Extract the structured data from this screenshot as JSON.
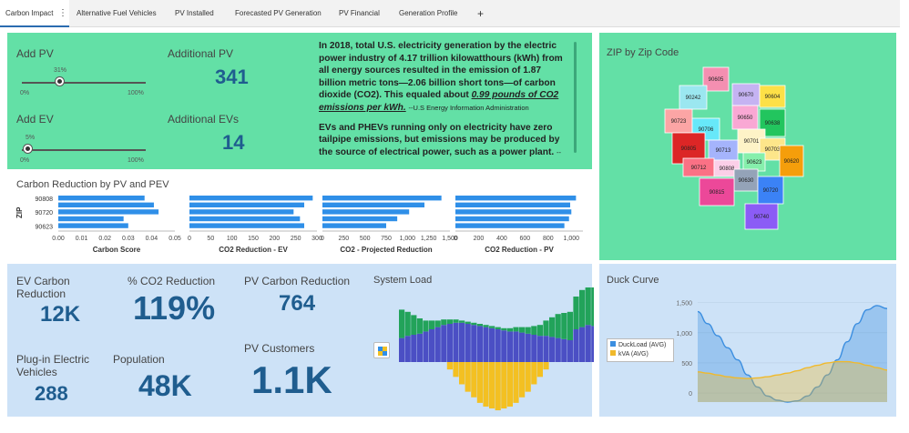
{
  "tabs": [
    {
      "label": "Carbon Impact"
    },
    {
      "label": "Alternative Fuel Vehicles"
    },
    {
      "label": "PV Installed"
    },
    {
      "label": "Forecasted PV Generation"
    },
    {
      "label": "PV Financial"
    },
    {
      "label": "Generation Profile"
    }
  ],
  "tab_more": "⋮",
  "tab_add": "+",
  "controls": {
    "add_pv": {
      "label": "Add PV",
      "value_label": "31%",
      "value": 0.31,
      "min": "0%",
      "max": "100%"
    },
    "add_ev": {
      "label": "Add EV",
      "value_label": "5%",
      "value": 0.05,
      "min": "0%",
      "max": "100%"
    },
    "additional_pv": {
      "label": "Additional PV",
      "value": "341"
    },
    "additional_evs": {
      "label": "Additional EVs",
      "value": "14"
    }
  },
  "info_text": {
    "p1": "In 2018, total U.S. electricity generation by the electric power industry of 4.17 trillion kilowatthours (kWh) from all energy sources resulted in the emission of 1.87 billion metric tons—2.06 billion short tons—of carbon dioxide (CO2). This equaled about",
    "p1_em": "0.99 pounds of CO2 emissions per kWh.",
    "p1_cite": "--U.S Energy Information Administration",
    "p2": "EVs and PHEVs running only on electricity have zero tailpipe emissions, but emissions may be produced by the source of electrical power, such as a power plant.",
    "p2_cite": "--U.S. Department of"
  },
  "map": {
    "title": "ZIP by Zip Code",
    "zips": [
      "90605",
      "90242",
      "90670",
      "90604",
      "90723",
      "90650",
      "90638",
      "90706",
      "90805",
      "90701",
      "90703",
      "90713",
      "90623",
      "90620",
      "90712",
      "90808",
      "90630",
      "90815",
      "90720",
      "90740"
    ]
  },
  "carbon_reduction": {
    "title": "Carbon Reduction by PV and PEV",
    "ylabel": "ZIP",
    "zip_labels": [
      "90808",
      "90720",
      "90623"
    ]
  },
  "kpis": {
    "ev_carbon": {
      "label_1": "EV Carbon",
      "label_2": "Reduction",
      "value": "12K"
    },
    "pct_co2": {
      "label": "% CO2 Reduction",
      "value": "119%"
    },
    "pv_carbon": {
      "label": "PV Carbon Reduction",
      "value": "764"
    },
    "plugin_ev": {
      "label_1": "Plug-in Electric",
      "label_2": "Vehicles",
      "value": "288"
    },
    "population": {
      "label": "Population",
      "value": "48K"
    },
    "pv_customers": {
      "label": "PV Customers",
      "value": "1.1K"
    }
  },
  "system_load": {
    "title": "System Load"
  },
  "colors": {
    "mint": "#63e0a6",
    "light_blue": "#cde2f7",
    "bar_blue": "#2f8fe8",
    "green": "#22a35a",
    "indigo": "#4b4fc4",
    "gold": "#f3c022",
    "duck_blue": "#3b8ee0",
    "duck_gold": "#f0b92b"
  },
  "chart_data": [
    {
      "type": "bar",
      "title": "Carbon Reduction by PV and PEV",
      "orientation": "horizontal",
      "ylabel": "ZIP",
      "categories": [
        "90808",
        "",
        "90720",
        "",
        "90623"
      ],
      "panels": [
        {
          "xlabel": "Carbon Score",
          "ticks": [
            "0.00",
            "0.01",
            "0.02",
            "0.03",
            "0.04",
            "0.05"
          ],
          "xlim": [
            0,
            0.05
          ],
          "values": [
            0.037,
            0.041,
            0.043,
            0.028,
            0.03
          ]
        },
        {
          "xlabel": "CO2 Reduction - EV",
          "ticks": [
            "0",
            "50",
            "100",
            "150",
            "200",
            "250",
            "300"
          ],
          "xlim": [
            0,
            300
          ],
          "values": [
            290,
            270,
            245,
            260,
            270
          ]
        },
        {
          "xlabel": "CO2 - Projected Reduction",
          "ticks": [
            "0",
            "250",
            "500",
            "750",
            "1,000",
            "1,250",
            "1,500"
          ],
          "xlim": [
            0,
            1500
          ],
          "values": [
            1400,
            1200,
            1020,
            880,
            750
          ]
        },
        {
          "xlabel": "CO2 Reduction - PV",
          "ticks": [
            "0",
            "200",
            "400",
            "600",
            "800",
            "1,000"
          ],
          "xlim": [
            0,
            1100
          ],
          "values": [
            1040,
            990,
            1000,
            980,
            940
          ]
        }
      ]
    },
    {
      "type": "bar",
      "title": "System Load",
      "stacked": true,
      "series": [
        {
          "name": "Base",
          "color": "#4b4fc4",
          "values": [
            22,
            24,
            25,
            26,
            28,
            30,
            32,
            34,
            35,
            36,
            36,
            35,
            34,
            33,
            32,
            31,
            30,
            29,
            28,
            28,
            27,
            26,
            25,
            24,
            24,
            23,
            22,
            21,
            20,
            30,
            32,
            34,
            33
          ]
        },
        {
          "name": "Added",
          "color": "#22a35a",
          "values": [
            26,
            22,
            18,
            14,
            10,
            8,
            6,
            5,
            4,
            3,
            2,
            2,
            2,
            2,
            2,
            2,
            2,
            2,
            3,
            4,
            5,
            6,
            8,
            10,
            14,
            18,
            22,
            24,
            26,
            30,
            34,
            36,
            38
          ]
        },
        {
          "name": "Negative",
          "color": "#f3c022",
          "values": [
            0,
            0,
            0,
            0,
            0,
            0,
            0,
            0,
            -4,
            -8,
            -12,
            -16,
            -19,
            -22,
            -24,
            -25,
            -26,
            -25,
            -24,
            -22,
            -19,
            -16,
            -12,
            -8,
            -4,
            0,
            0,
            0,
            0,
            0,
            0,
            0,
            0
          ]
        }
      ]
    },
    {
      "type": "area",
      "title": "Duck Curve",
      "y_ticks": [
        "1,500",
        "1,000",
        "500",
        "0"
      ],
      "ylim": [
        -150,
        1600
      ],
      "series": [
        {
          "name": "DuckLoad (AVG)",
          "values": [
            1350,
            1150,
            950,
            750,
            550,
            300,
            100,
            -50,
            -120,
            -150,
            -130,
            -50,
            100,
            300,
            550,
            850,
            1150,
            1380,
            1450,
            1400
          ]
        },
        {
          "name": "kVA (AVG)",
          "values": [
            350,
            330,
            300,
            270,
            250,
            240,
            250,
            270,
            300,
            330,
            370,
            420,
            460,
            500,
            520,
            520,
            500,
            460,
            420,
            380
          ]
        }
      ],
      "legend": "left"
    }
  ]
}
